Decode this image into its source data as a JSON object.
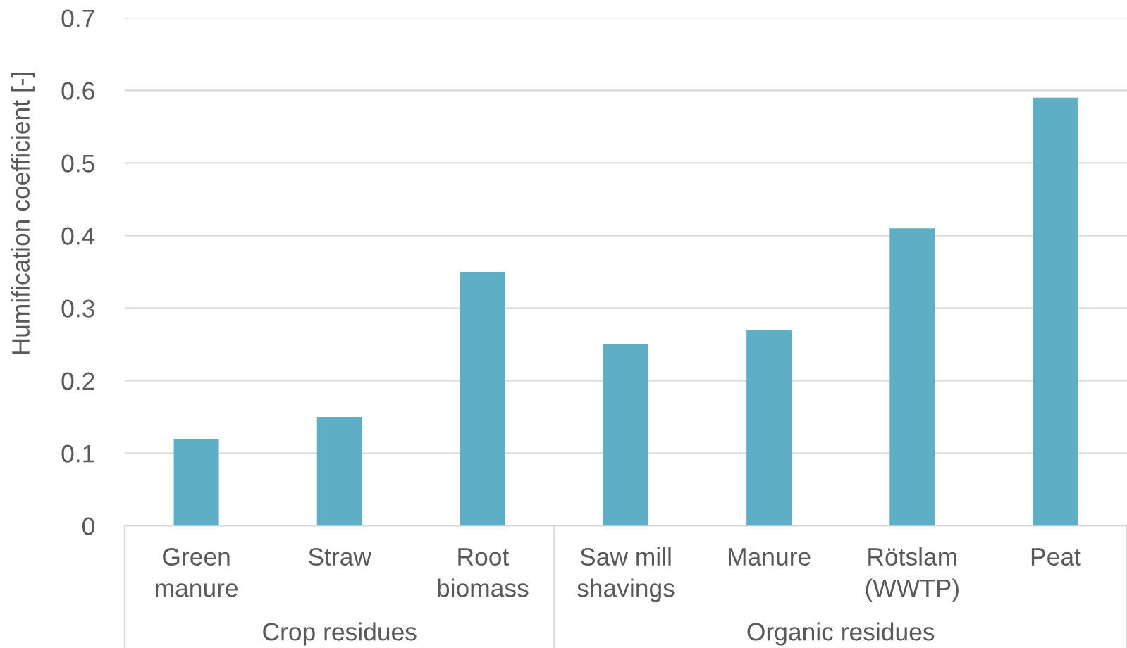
{
  "chart_data": {
    "type": "bar",
    "ylabel": "Humification coefficient [-]",
    "categories": [
      "Green manure",
      "Straw",
      "Root biomass",
      "Saw mill shavings",
      "Manure",
      "Rötslam (WWTP)",
      "Peat"
    ],
    "values": [
      0.12,
      0.15,
      0.35,
      0.25,
      0.27,
      0.41,
      0.59
    ],
    "color": "#5eaec5",
    "ylim": [
      0,
      0.7
    ],
    "yticks": [
      0,
      0.1,
      0.2,
      0.3,
      0.4,
      0.5,
      0.6,
      0.7
    ],
    "grid": "y",
    "annotations": [
      "Crop residues",
      "Organic residues"
    ]
  }
}
